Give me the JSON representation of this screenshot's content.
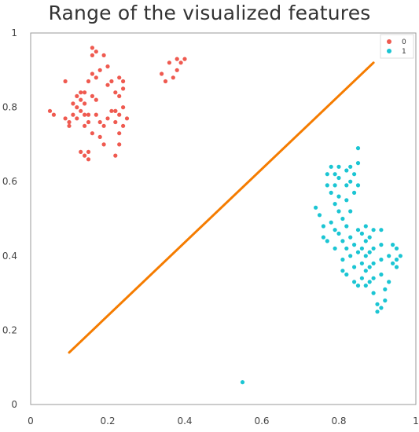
{
  "chart_data": {
    "type": "scatter",
    "title": "Range of the visualized features",
    "xlabel": "",
    "ylabel": "",
    "xlim": [
      0,
      1
    ],
    "ylim": [
      0,
      1
    ],
    "x_ticks": [
      "0",
      "0.2",
      "0.4",
      "0.6",
      "0.8",
      "1"
    ],
    "y_ticks": [
      "0",
      "0.2",
      "0.4",
      "0.6",
      "0.8",
      "1"
    ],
    "grid": false,
    "legend_position": "top-right",
    "series": [
      {
        "name": "0",
        "color": "#ef5a50",
        "points": [
          [
            0.05,
            0.79
          ],
          [
            0.06,
            0.78
          ],
          [
            0.09,
            0.87
          ],
          [
            0.09,
            0.77
          ],
          [
            0.1,
            0.76
          ],
          [
            0.1,
            0.75
          ],
          [
            0.11,
            0.81
          ],
          [
            0.11,
            0.78
          ],
          [
            0.12,
            0.83
          ],
          [
            0.12,
            0.8
          ],
          [
            0.12,
            0.77
          ],
          [
            0.13,
            0.84
          ],
          [
            0.13,
            0.82
          ],
          [
            0.13,
            0.79
          ],
          [
            0.14,
            0.84
          ],
          [
            0.14,
            0.81
          ],
          [
            0.14,
            0.78
          ],
          [
            0.14,
            0.75
          ],
          [
            0.13,
            0.68
          ],
          [
            0.14,
            0.67
          ],
          [
            0.15,
            0.66
          ],
          [
            0.15,
            0.68
          ],
          [
            0.15,
            0.87
          ],
          [
            0.15,
            0.78
          ],
          [
            0.15,
            0.76
          ],
          [
            0.16,
            0.96
          ],
          [
            0.16,
            0.94
          ],
          [
            0.16,
            0.89
          ],
          [
            0.16,
            0.83
          ],
          [
            0.16,
            0.73
          ],
          [
            0.17,
            0.95
          ],
          [
            0.17,
            0.88
          ],
          [
            0.17,
            0.82
          ],
          [
            0.17,
            0.78
          ],
          [
            0.18,
            0.9
          ],
          [
            0.18,
            0.76
          ],
          [
            0.18,
            0.72
          ],
          [
            0.19,
            0.94
          ],
          [
            0.19,
            0.75
          ],
          [
            0.19,
            0.7
          ],
          [
            0.2,
            0.77
          ],
          [
            0.2,
            0.91
          ],
          [
            0.2,
            0.86
          ],
          [
            0.21,
            0.79
          ],
          [
            0.21,
            0.87
          ],
          [
            0.22,
            0.84
          ],
          [
            0.22,
            0.79
          ],
          [
            0.22,
            0.67
          ],
          [
            0.22,
            0.76
          ],
          [
            0.23,
            0.88
          ],
          [
            0.23,
            0.83
          ],
          [
            0.23,
            0.78
          ],
          [
            0.23,
            0.73
          ],
          [
            0.23,
            0.7
          ],
          [
            0.24,
            0.87
          ],
          [
            0.24,
            0.85
          ],
          [
            0.24,
            0.8
          ],
          [
            0.24,
            0.75
          ],
          [
            0.25,
            0.77
          ],
          [
            0.34,
            0.89
          ],
          [
            0.35,
            0.87
          ],
          [
            0.36,
            0.92
          ],
          [
            0.37,
            0.88
          ],
          [
            0.38,
            0.93
          ],
          [
            0.38,
            0.9
          ],
          [
            0.39,
            0.92
          ],
          [
            0.4,
            0.93
          ],
          [
            0.22,
            0.79
          ]
        ]
      },
      {
        "name": "1",
        "color": "#1bc5d3",
        "points": [
          [
            0.55,
            0.06
          ],
          [
            0.74,
            0.53
          ],
          [
            0.75,
            0.51
          ],
          [
            0.76,
            0.48
          ],
          [
            0.76,
            0.45
          ],
          [
            0.77,
            0.44
          ],
          [
            0.77,
            0.62
          ],
          [
            0.77,
            0.59
          ],
          [
            0.78,
            0.64
          ],
          [
            0.78,
            0.57
          ],
          [
            0.78,
            0.49
          ],
          [
            0.79,
            0.62
          ],
          [
            0.79,
            0.59
          ],
          [
            0.79,
            0.54
          ],
          [
            0.79,
            0.47
          ],
          [
            0.79,
            0.42
          ],
          [
            0.8,
            0.64
          ],
          [
            0.8,
            0.61
          ],
          [
            0.8,
            0.56
          ],
          [
            0.8,
            0.52
          ],
          [
            0.8,
            0.46
          ],
          [
            0.81,
            0.5
          ],
          [
            0.81,
            0.44
          ],
          [
            0.81,
            0.39
          ],
          [
            0.81,
            0.36
          ],
          [
            0.82,
            0.63
          ],
          [
            0.82,
            0.59
          ],
          [
            0.82,
            0.55
          ],
          [
            0.82,
            0.48
          ],
          [
            0.82,
            0.42
          ],
          [
            0.82,
            0.35
          ],
          [
            0.83,
            0.64
          ],
          [
            0.83,
            0.6
          ],
          [
            0.83,
            0.52
          ],
          [
            0.83,
            0.45
          ],
          [
            0.83,
            0.4
          ],
          [
            0.84,
            0.62
          ],
          [
            0.84,
            0.57
          ],
          [
            0.84,
            0.43
          ],
          [
            0.84,
            0.37
          ],
          [
            0.84,
            0.33
          ],
          [
            0.85,
            0.69
          ],
          [
            0.85,
            0.65
          ],
          [
            0.85,
            0.59
          ],
          [
            0.85,
            0.47
          ],
          [
            0.85,
            0.41
          ],
          [
            0.85,
            0.32
          ],
          [
            0.86,
            0.46
          ],
          [
            0.86,
            0.42
          ],
          [
            0.86,
            0.38
          ],
          [
            0.86,
            0.34
          ],
          [
            0.87,
            0.48
          ],
          [
            0.87,
            0.44
          ],
          [
            0.87,
            0.4
          ],
          [
            0.87,
            0.36
          ],
          [
            0.87,
            0.32
          ],
          [
            0.88,
            0.45
          ],
          [
            0.88,
            0.41
          ],
          [
            0.88,
            0.37
          ],
          [
            0.88,
            0.33
          ],
          [
            0.89,
            0.47
          ],
          [
            0.89,
            0.42
          ],
          [
            0.89,
            0.38
          ],
          [
            0.89,
            0.34
          ],
          [
            0.89,
            0.3
          ],
          [
            0.9,
            0.27
          ],
          [
            0.9,
            0.25
          ],
          [
            0.91,
            0.47
          ],
          [
            0.91,
            0.43
          ],
          [
            0.91,
            0.39
          ],
          [
            0.91,
            0.35
          ],
          [
            0.91,
            0.26
          ],
          [
            0.92,
            0.31
          ],
          [
            0.92,
            0.28
          ],
          [
            0.93,
            0.4
          ],
          [
            0.93,
            0.33
          ],
          [
            0.94,
            0.43
          ],
          [
            0.94,
            0.38
          ],
          [
            0.95,
            0.42
          ],
          [
            0.95,
            0.39
          ],
          [
            0.95,
            0.37
          ],
          [
            0.96,
            0.4
          ]
        ]
      }
    ],
    "line": {
      "color": "#f57c00",
      "points": [
        [
          0.1,
          0.14
        ],
        [
          0.89,
          0.92
        ]
      ]
    }
  }
}
